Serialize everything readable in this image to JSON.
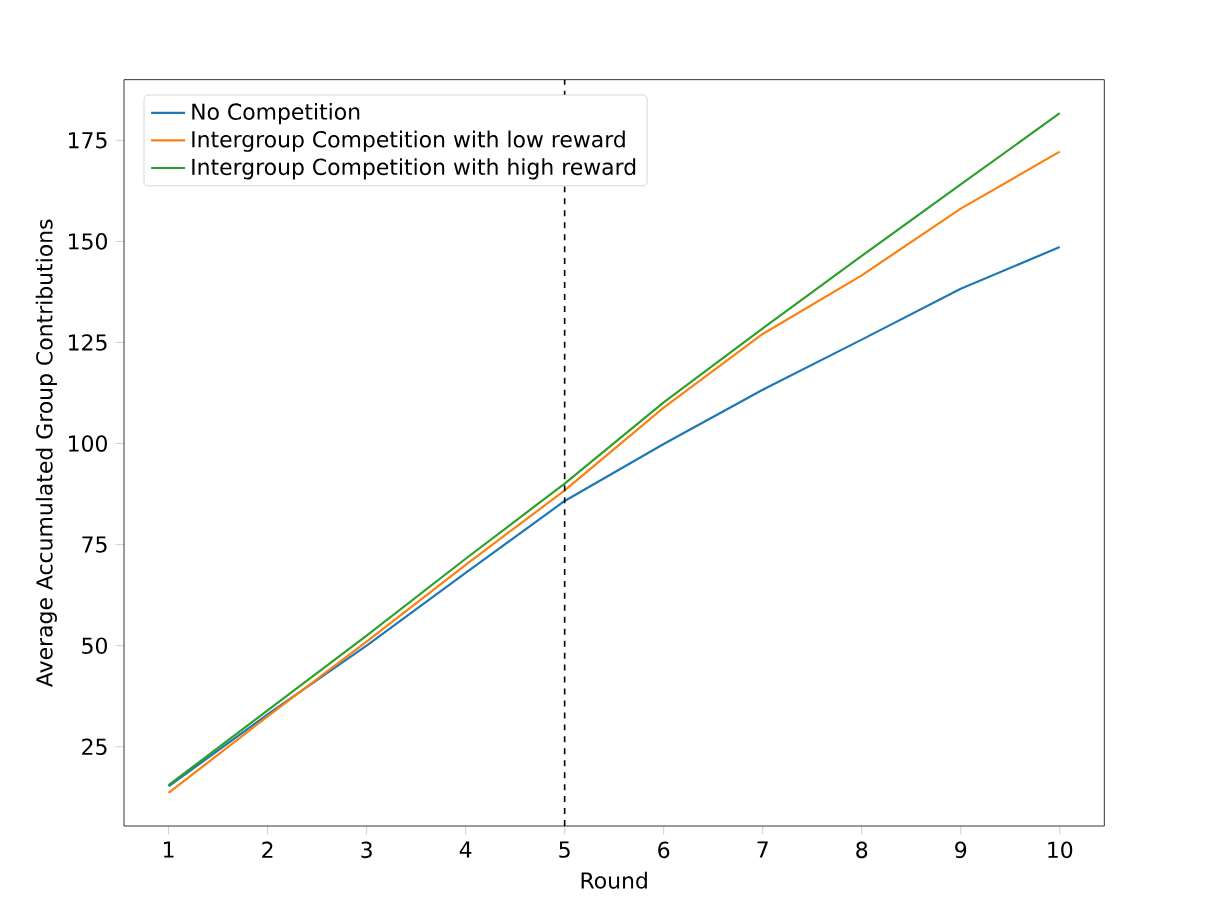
{
  "chart_data": {
    "type": "line",
    "xlabel": "Round",
    "ylabel": "Average Accumulated Group Contributions",
    "x": [
      1,
      2,
      3,
      4,
      5,
      6,
      7,
      8,
      9,
      10
    ],
    "series": [
      {
        "name": "No Competition",
        "color": "#1f77b4",
        "values": [
          15.2,
          33,
          50,
          68,
          85.8,
          99.9,
          113.3,
          125.7,
          138.3,
          148.6
        ]
      },
      {
        "name": "Intergroup Competition with low reward",
        "color": "#ff7f0e",
        "values": [
          13.6,
          32.5,
          51,
          70,
          88.4,
          108.9,
          127.1,
          141.6,
          158.1,
          172.2
        ]
      },
      {
        "name": "Intergroup Competition with high reward",
        "color": "#2ca02c",
        "values": [
          15.5,
          34,
          52.5,
          71.5,
          90.1,
          110.2,
          128.5,
          146.4,
          164.1,
          181.7
        ]
      }
    ],
    "xlim": [
      0.55,
      10.45
    ],
    "ylim": [
      5.4,
      190
    ],
    "xticks": [
      1,
      2,
      3,
      4,
      5,
      6,
      7,
      8,
      9,
      10
    ],
    "yticks": [
      25,
      50,
      75,
      100,
      125,
      150,
      175
    ],
    "ref_lines": [
      {
        "axis": "x",
        "value": 5,
        "color": "#000000",
        "line_style": "dashed"
      }
    ],
    "legend": "top left",
    "grid": false,
    "marker": "none",
    "line_style": "solid"
  }
}
